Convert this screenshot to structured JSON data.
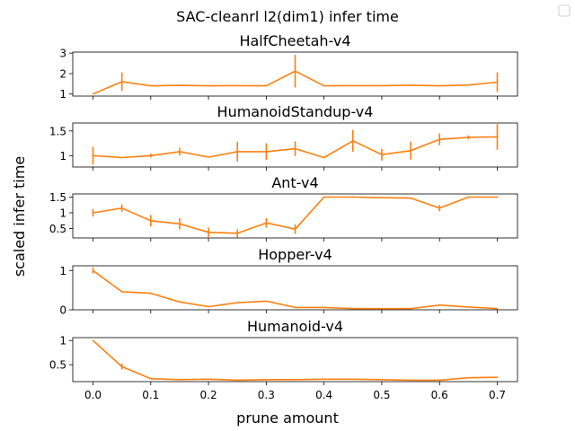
{
  "figure": {
    "suptitle": "SAC-cleanrl l2(dim1) infer time",
    "xlabel": "prune amount",
    "ylabel": "scaled infer time",
    "legend_box": ""
  },
  "chart_data": [
    {
      "type": "line",
      "title": "HalfCheetah-v4",
      "x": [
        0.0,
        0.05,
        0.1,
        0.15,
        0.2,
        0.25,
        0.3,
        0.35,
        0.4,
        0.45,
        0.5,
        0.55,
        0.6,
        0.65,
        0.7
      ],
      "series": [
        {
          "values": [
            1.0,
            1.6,
            1.4,
            1.42,
            1.4,
            1.41,
            1.4,
            2.12,
            1.4,
            1.41,
            1.41,
            1.43,
            1.4,
            1.44,
            1.58
          ],
          "errors": [
            0.02,
            0.45,
            0.02,
            0.02,
            0.02,
            0.02,
            0.02,
            0.8,
            0.02,
            0.02,
            0.02,
            0.02,
            0.02,
            0.02,
            0.48
          ],
          "color": "#ff7f0e"
        }
      ],
      "yticks": [
        1,
        2,
        3
      ],
      "ylim": [
        0.9,
        3.05
      ]
    },
    {
      "type": "line",
      "title": "HumanoidStandup-v4",
      "x": [
        0.0,
        0.05,
        0.1,
        0.15,
        0.2,
        0.25,
        0.3,
        0.35,
        0.4,
        0.45,
        0.5,
        0.55,
        0.6,
        0.65,
        0.7
      ],
      "series": [
        {
          "values": [
            1.0,
            0.96,
            1.0,
            1.08,
            0.97,
            1.08,
            1.08,
            1.14,
            0.96,
            1.3,
            1.02,
            1.1,
            1.33,
            1.37,
            1.38
          ],
          "errors": [
            0.18,
            0.01,
            0.04,
            0.08,
            0.01,
            0.2,
            0.17,
            0.15,
            0.01,
            0.22,
            0.12,
            0.18,
            0.12,
            0.04,
            0.26
          ],
          "color": "#ff7f0e"
        }
      ],
      "yticks": [
        1.0,
        1.5
      ],
      "ylim": [
        0.77,
        1.66
      ]
    },
    {
      "type": "line",
      "title": "Ant-v4",
      "x": [
        0.0,
        0.05,
        0.1,
        0.15,
        0.2,
        0.25,
        0.3,
        0.35,
        0.4,
        0.45,
        0.5,
        0.55,
        0.6,
        0.65,
        0.7
      ],
      "series": [
        {
          "values": [
            1.0,
            1.15,
            0.75,
            0.65,
            0.38,
            0.35,
            0.68,
            0.48,
            1.5,
            1.5,
            1.48,
            1.47,
            1.15,
            1.5,
            1.5
          ],
          "errors": [
            0.12,
            0.12,
            0.18,
            0.18,
            0.15,
            0.13,
            0.15,
            0.15,
            0.02,
            0.02,
            0.02,
            0.02,
            0.1,
            0.02,
            0.02
          ],
          "color": "#ff7f0e"
        }
      ],
      "yticks": [
        0.5,
        1.0,
        1.5
      ],
      "ylim": [
        0.2,
        1.6
      ]
    },
    {
      "type": "line",
      "title": "Hopper-v4",
      "x": [
        0.0,
        0.05,
        0.1,
        0.15,
        0.2,
        0.25,
        0.3,
        0.35,
        0.4,
        0.45,
        0.5,
        0.55,
        0.6,
        0.65,
        0.7
      ],
      "series": [
        {
          "values": [
            1.0,
            0.46,
            0.42,
            0.2,
            0.08,
            0.18,
            0.22,
            0.06,
            0.06,
            0.03,
            0.03,
            0.03,
            0.12,
            0.07,
            0.03
          ],
          "errors": [
            0.08,
            0.01,
            0.01,
            0.01,
            0.01,
            0.01,
            0.01,
            0.01,
            0.01,
            0.01,
            0.01,
            0.01,
            0.01,
            0.01,
            0.01
          ],
          "color": "#ff7f0e"
        }
      ],
      "yticks": [
        0,
        1
      ],
      "ylim": [
        0,
        1.12
      ]
    },
    {
      "type": "line",
      "title": "Humanoid-v4",
      "x": [
        0.0,
        0.05,
        0.1,
        0.15,
        0.2,
        0.25,
        0.3,
        0.35,
        0.4,
        0.45,
        0.5,
        0.55,
        0.6,
        0.65,
        0.7
      ],
      "series": [
        {
          "values": [
            1.0,
            0.46,
            0.21,
            0.19,
            0.2,
            0.18,
            0.19,
            0.19,
            0.2,
            0.2,
            0.19,
            0.18,
            0.18,
            0.23,
            0.24
          ],
          "errors": [
            0.01,
            0.06,
            0.01,
            0.01,
            0.01,
            0.01,
            0.01,
            0.01,
            0.01,
            0.01,
            0.01,
            0.01,
            0.01,
            0.01,
            0.01
          ],
          "color": "#ff7f0e"
        }
      ],
      "yticks": [
        0.5,
        1.0
      ],
      "ylim": [
        0.15,
        1.06
      ]
    }
  ],
  "xaxis": {
    "xlim": [
      -0.035,
      0.735
    ],
    "ticks": [
      0.0,
      0.1,
      0.2,
      0.3,
      0.4,
      0.5,
      0.6,
      0.7
    ],
    "ticklabels": [
      "0.0",
      "0.1",
      "0.2",
      "0.3",
      "0.4",
      "0.5",
      "0.6",
      "0.7"
    ]
  }
}
